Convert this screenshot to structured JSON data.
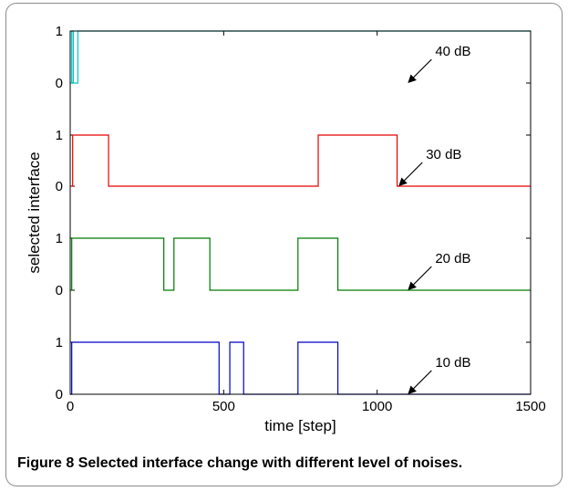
{
  "chart_data": {
    "type": "line",
    "xlabel": "time [step]",
    "ylabel": "selected interface",
    "xlim": [
      0,
      1500
    ],
    "xticks": [
      "0",
      "500",
      "1000",
      "1500"
    ],
    "panel_yticks": [
      "0",
      "1"
    ],
    "grid": false,
    "series": [
      {
        "color": "#00c8c8",
        "annotation": "40 dB",
        "annotation_anchor": [
          1100,
          0
        ],
        "x": [
          0,
          5,
          5,
          10,
          10,
          25,
          25,
          1500
        ],
        "y": [
          0,
          0,
          1,
          1,
          0,
          0,
          1,
          1
        ]
      },
      {
        "color": "#e60000",
        "annotation": "30 dB",
        "annotation_anchor": [
          1070,
          0
        ],
        "x": [
          0,
          8,
          8,
          125,
          125,
          808,
          808,
          1065,
          1065,
          1500
        ],
        "y": [
          0,
          0,
          1,
          1,
          0,
          0,
          1,
          1,
          0,
          0
        ]
      },
      {
        "color": "#007a00",
        "annotation": "20 dB",
        "annotation_anchor": [
          1100,
          0
        ],
        "x": [
          0,
          5,
          5,
          305,
          305,
          338,
          338,
          455,
          455,
          742,
          742,
          872,
          872,
          1500
        ],
        "y": [
          0,
          0,
          1,
          1,
          0,
          0,
          1,
          1,
          0,
          0,
          1,
          1,
          0,
          0
        ]
      },
      {
        "color": "#0000c8",
        "annotation": "10 dB",
        "annotation_anchor": [
          1100,
          0
        ],
        "x": [
          0,
          5,
          5,
          485,
          485,
          520,
          520,
          565,
          565,
          742,
          742,
          872,
          872,
          1500
        ],
        "y": [
          0,
          0,
          1,
          1,
          0,
          0,
          1,
          1,
          0,
          0,
          1,
          1,
          0,
          0
        ]
      }
    ]
  },
  "caption": {
    "label": "Figure 8",
    "text": "Selected interface change with different level of noises."
  }
}
